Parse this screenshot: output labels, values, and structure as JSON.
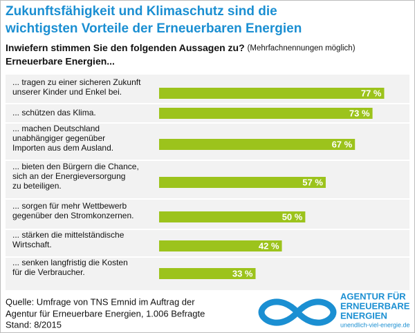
{
  "chart_data": {
    "type": "bar",
    "title": [
      "Zukunftsfähigkeit und Klimaschutz sind die",
      "wichtigsten Vorteile der Erneuerbaren Energien"
    ],
    "subtitle": "Inwiefern stimmen Sie den folgenden Aussagen zu?",
    "subtitle_note": "(Mehrfachnennungen möglich)",
    "subject": "Erneuerbare Energien...",
    "categories": [
      [
        "... tragen zu einer sicheren Zukunft",
        "unserer Kinder und Enkel bei."
      ],
      [
        "... schützen das Klima."
      ],
      [
        "... machen Deutschland",
        "unabhängiger gegenüber",
        "Importen aus dem Ausland."
      ],
      [
        "... bieten den Bürgern die Chance,",
        "sich an der Energieversorgung",
        "zu beteiligen."
      ],
      [
        "... sorgen für mehr Wettbewerb",
        "gegenüber den Stromkonzernen."
      ],
      [
        "... stärken die mittelständische",
        "Wirtschaft."
      ],
      [
        "... senken langfristig die Kosten",
        "für die Verbraucher."
      ]
    ],
    "values": [
      77,
      73,
      67,
      57,
      50,
      42,
      33
    ],
    "value_labels": [
      "77 %",
      "73 %",
      "67 %",
      "57 %",
      "50 %",
      "42 %",
      "33 %"
    ],
    "color": "#9cc31c",
    "source": [
      "Quelle: Umfrage von TNS Emnid im Auftrag der",
      "Agentur für Erneuerbare Energien, 1.006 Befragte",
      "Stand: 8/2015"
    ],
    "logo": {
      "lines": [
        "AGENTUR FÜR",
        "ERNEUERBARE",
        "ENERGIEN"
      ],
      "url": "unendlich-viel-energie.de"
    }
  }
}
